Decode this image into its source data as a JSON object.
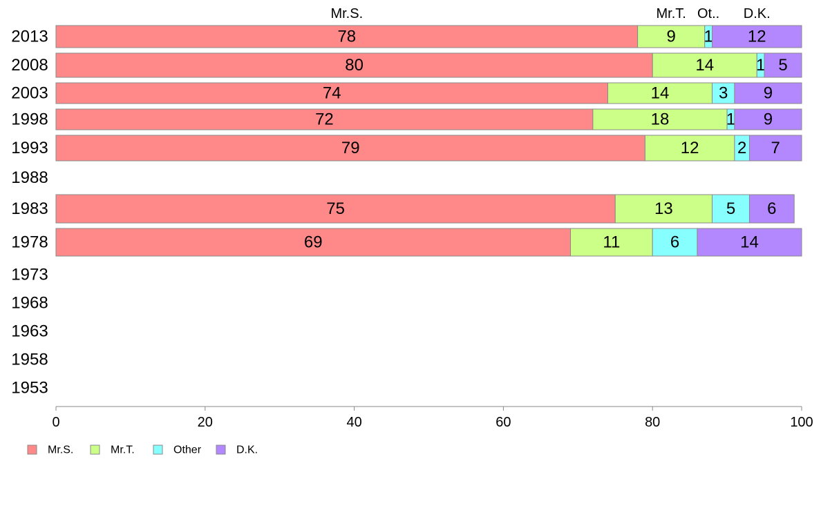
{
  "chart_data": {
    "type": "bar",
    "orientation": "horizontal",
    "stacked": true,
    "categories": [
      "2013",
      "2008",
      "2003",
      "1998",
      "1993",
      "1988",
      "1983",
      "1978",
      "1973",
      "1968",
      "1963",
      "1958",
      "1953"
    ],
    "series": [
      {
        "name": "Mr.S.",
        "color": "#ff8888",
        "values": [
          78,
          80,
          74,
          72,
          79,
          null,
          75,
          69,
          null,
          null,
          null,
          null,
          null
        ]
      },
      {
        "name": "Mr.T.",
        "color": "#ccff88",
        "values": [
          9,
          14,
          14,
          18,
          12,
          null,
          13,
          11,
          null,
          null,
          null,
          null,
          null
        ]
      },
      {
        "name": "Other",
        "color": "#88ffff",
        "values": [
          1,
          1,
          3,
          1,
          2,
          null,
          5,
          6,
          null,
          null,
          null,
          null,
          null
        ]
      },
      {
        "name": "D.K.",
        "color": "#b388ff",
        "values": [
          12,
          5,
          9,
          9,
          7,
          null,
          6,
          14,
          null,
          null,
          null,
          null,
          null
        ]
      }
    ],
    "top_labels": [
      "Mr.S.",
      "Mr.T.",
      "Ot..",
      "D.K."
    ],
    "xlim": [
      0,
      100
    ],
    "xticks": [
      "0",
      "20",
      "40",
      "60",
      "80",
      "100"
    ],
    "grid": false,
    "legend_position": "bottom-left"
  }
}
